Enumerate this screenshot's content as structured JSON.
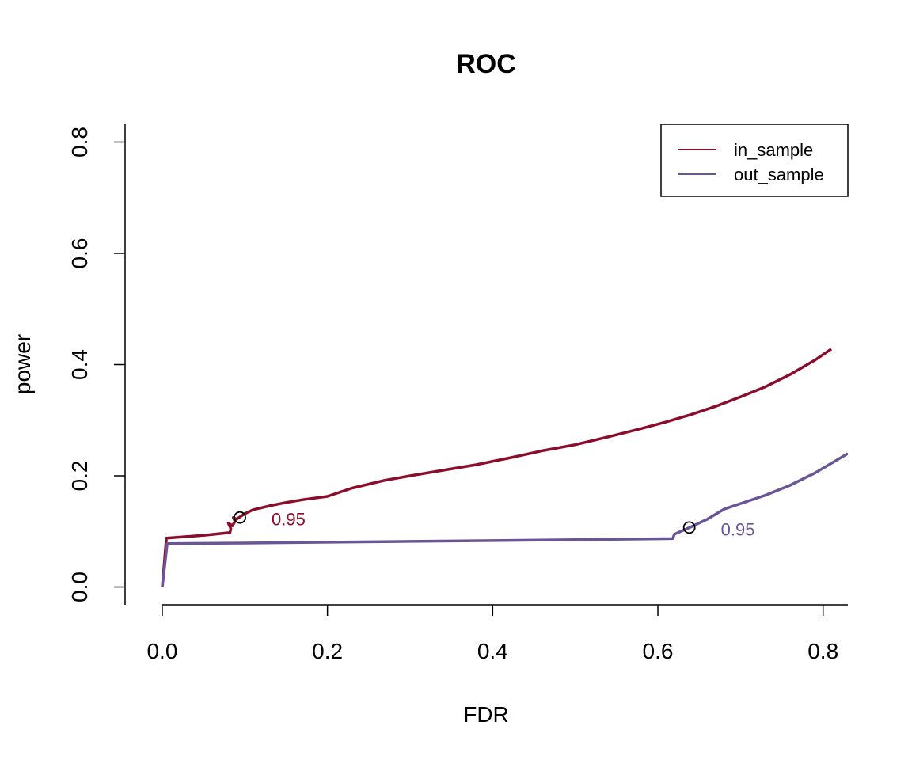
{
  "chart_data": {
    "type": "line",
    "title": "ROC",
    "xlabel": "FDR",
    "ylabel": "power",
    "xlim": [
      -0.045,
      0.83
    ],
    "ylim": [
      -0.032,
      0.832
    ],
    "xticks": [
      0.0,
      0.2,
      0.4,
      0.6,
      0.8
    ],
    "xtick_labels": [
      "0.0",
      "0.2",
      "0.4",
      "0.6",
      "0.8"
    ],
    "yticks": [
      0.0,
      0.2,
      0.4,
      0.6,
      0.8
    ],
    "ytick_labels": [
      "0.0",
      "0.2",
      "0.4",
      "0.6",
      "0.8"
    ],
    "grid": false,
    "legend": {
      "position": "top-right",
      "entries": [
        "in_sample",
        "out_sample"
      ]
    },
    "series": [
      {
        "name": "in_sample",
        "color": "#8b0d2b",
        "x": [
          0.0,
          0.005,
          0.05,
          0.082,
          0.083,
          0.08,
          0.085,
          0.088,
          0.086,
          0.09,
          0.093,
          0.1,
          0.11,
          0.13,
          0.15,
          0.17,
          0.2,
          0.23,
          0.27,
          0.3,
          0.34,
          0.38,
          0.42,
          0.46,
          0.5,
          0.54,
          0.58,
          0.61,
          0.64,
          0.67,
          0.7,
          0.73,
          0.76,
          0.79,
          0.81
        ],
        "y": [
          0.0,
          0.088,
          0.093,
          0.098,
          0.105,
          0.115,
          0.11,
          0.118,
          0.125,
          0.122,
          0.125,
          0.132,
          0.139,
          0.146,
          0.152,
          0.157,
          0.163,
          0.178,
          0.192,
          0.2,
          0.21,
          0.22,
          0.232,
          0.245,
          0.256,
          0.27,
          0.285,
          0.297,
          0.31,
          0.325,
          0.342,
          0.36,
          0.382,
          0.408,
          0.428
        ]
      },
      {
        "name": "out_sample",
        "color": "#6a5596",
        "x": [
          0.0,
          0.006,
          0.1,
          0.3,
          0.5,
          0.618,
          0.62,
          0.64,
          0.66,
          0.68,
          0.7,
          0.73,
          0.76,
          0.79,
          0.83
        ],
        "y": [
          0.0,
          0.078,
          0.079,
          0.082,
          0.085,
          0.087,
          0.095,
          0.108,
          0.122,
          0.14,
          0.15,
          0.165,
          0.183,
          0.205,
          0.24
        ]
      }
    ],
    "annotations": [
      {
        "series": "in_sample",
        "x": 0.094,
        "y": 0.125,
        "label": "0.95",
        "color": "#8b0d2b"
      },
      {
        "series": "out_sample",
        "x": 0.638,
        "y": 0.107,
        "label": "0.95",
        "color": "#6a5596"
      }
    ]
  }
}
